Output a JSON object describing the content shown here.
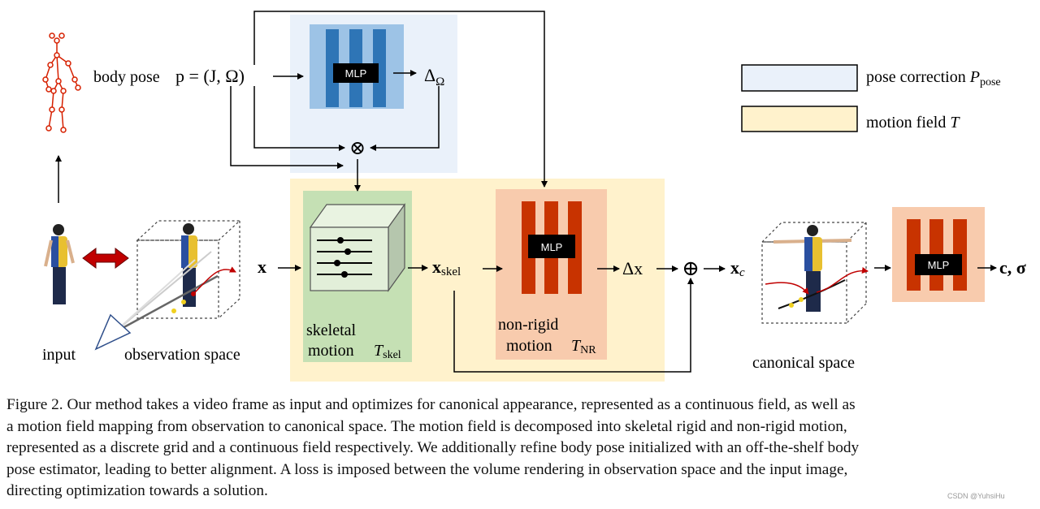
{
  "diagram": {
    "body_pose_label": "body pose",
    "pose_formula": "p = (J, Ω)",
    "delta_omega": "Δ",
    "delta_omega_sub": "Ω",
    "mlp_label": "MLP",
    "otimes": "⊗",
    "oplus": "⊕",
    "x_label": "x",
    "x_skel": "x",
    "x_skel_sub": "skel",
    "delta_x": "Δx",
    "x_c": "x",
    "x_c_sub": "c",
    "output_label": "c, σ",
    "input_label": "input",
    "observation_space_label": "observation space",
    "canonical_space_label": "canonical space",
    "skeletal_motion_line1": "skeletal",
    "skeletal_motion_line2": "motion",
    "t_skel": "T",
    "t_skel_sub": "skel",
    "nonrigid_line1": "non-rigid",
    "nonrigid_line2": "motion",
    "t_nr": "T",
    "t_nr_sub": "NR",
    "legend": [
      {
        "label": "pose correction",
        "symbol": "P",
        "symbol_sub": "pose",
        "color": "#e8f0f9"
      },
      {
        "label": "motion field",
        "symbol": "T",
        "symbol_sub": "",
        "color": "#fff2cc"
      }
    ],
    "colors": {
      "pose_bg": "#eaf1fa",
      "pose_mlp_bg": "#9dc3e6",
      "pose_mlp_bar": "#2e75b6",
      "motion_bg": "#fff2cc",
      "skel_bg": "#c5e0b4",
      "nr_bg": "#f8cbad",
      "nr_bar": "#c83300",
      "skeleton": "#d62000"
    }
  },
  "caption": [
    "Figure 2. Our method takes a video frame as input and optimizes for canonical appearance, represented as a continuous field, as well as",
    "a motion field mapping from observation to canonical space. The motion field is decomposed into skeletal rigid and non-rigid motion,",
    "represented as a discrete grid and a continuous field respectively. We additionally refine body pose initialized with an off-the-shelf body",
    "pose estimator, leading to better alignment. A loss is imposed between the volume rendering in observation space and the input image,",
    "directing optimization towards a solution."
  ],
  "watermark": "CSDN @YuhsiHu"
}
